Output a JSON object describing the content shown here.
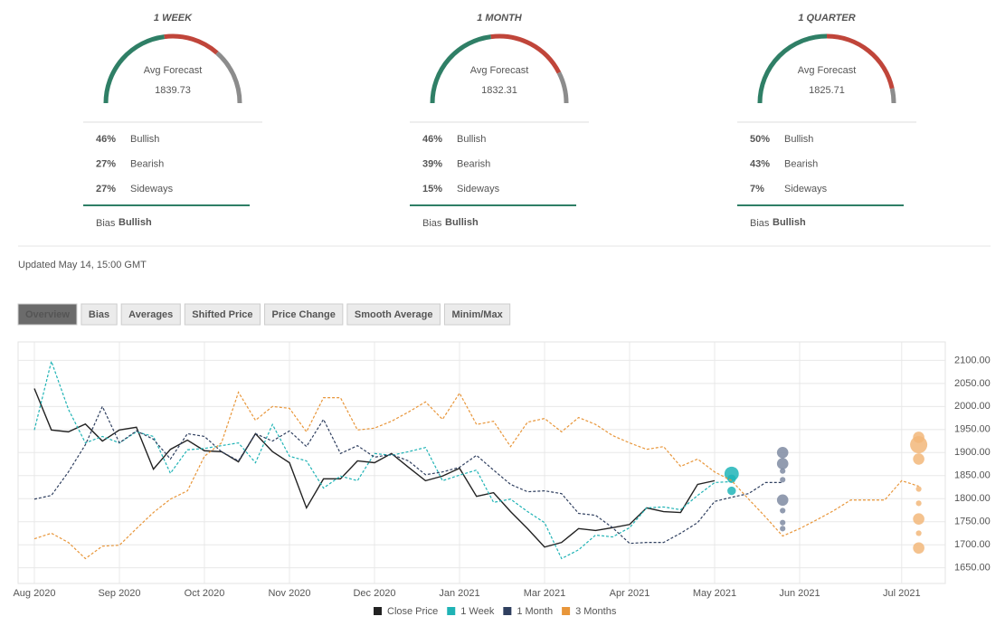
{
  "gauges": [
    {
      "period": "1 WEEK",
      "caption": "Avg Forecast",
      "average": 1839.73,
      "rows": [
        {
          "pct": {
            "value": 46,
            "label": "46%"
          },
          "name": "Bullish",
          "color": "#2f7f66"
        },
        {
          "pct": {
            "value": 27,
            "label": "27%"
          },
          "name": "Bearish",
          "color": "#c0453a"
        },
        {
          "pct": {
            "value": 27,
            "label": "27%"
          },
          "name": "Sideways",
          "color": "#8c8c8c"
        }
      ],
      "bias_label": "Bias",
      "bias": "Bullish"
    },
    {
      "period": "1 MONTH",
      "caption": "Avg Forecast",
      "average": 1832.31,
      "rows": [
        {
          "pct": {
            "value": 46,
            "label": "46%"
          },
          "name": "Bullish",
          "color": "#2f7f66"
        },
        {
          "pct": {
            "value": 39,
            "label": "39%"
          },
          "name": "Bearish",
          "color": "#c0453a"
        },
        {
          "pct": {
            "value": 15,
            "label": "15%"
          },
          "name": "Sideways",
          "color": "#8c8c8c"
        }
      ],
      "bias_label": "Bias",
      "bias": "Bullish"
    },
    {
      "period": "1 QUARTER",
      "caption": "Avg Forecast",
      "average": 1825.71,
      "rows": [
        {
          "pct": {
            "value": 50,
            "label": "50%"
          },
          "name": "Bullish",
          "color": "#2f7f66"
        },
        {
          "pct": {
            "value": 43,
            "label": "43%"
          },
          "name": "Bearish",
          "color": "#c0453a"
        },
        {
          "pct": {
            "value": 7,
            "label": "7%"
          },
          "name": "Sideways",
          "color": "#8c8c8c"
        }
      ],
      "bias_label": "Bias",
      "bias": "Bullish"
    }
  ],
  "updated": "Updated May 14, 15:00 GMT",
  "tabs": [
    "Overview",
    "Bias",
    "Averages",
    "Shifted Price",
    "Price Change",
    "Smooth Average",
    "Minim/Max"
  ],
  "chart_data": {
    "type": "line",
    "categories": [
      "Aug 2020",
      null,
      null,
      null,
      null,
      "Sep 2020",
      null,
      null,
      null,
      null,
      "Oct 2020",
      null,
      null,
      null,
      null,
      "Nov 2020",
      null,
      null,
      null,
      null,
      "Dec 2020",
      null,
      null,
      null,
      null,
      "Jan 2021",
      null,
      null,
      null,
      null,
      "Mar 2021",
      null,
      null,
      null,
      null,
      "Apr 2021",
      null,
      null,
      null,
      null,
      "May 2021",
      null,
      null,
      null,
      null,
      "Jun 2021",
      null,
      null,
      null,
      null,
      null,
      "Jul 2021",
      null,
      null
    ],
    "ylim": [
      1616,
      2140
    ],
    "yticks": [
      {
        "value": 1650,
        "label": "1650.00"
      },
      {
        "value": 1700,
        "label": "1700.00"
      },
      {
        "value": 1750,
        "label": "1750.00"
      },
      {
        "value": 1800,
        "label": "1800.00"
      },
      {
        "value": 1850,
        "label": "1850.00"
      },
      {
        "value": 1900,
        "label": "1900.00"
      },
      {
        "value": 1950,
        "label": "1950.00"
      },
      {
        "value": 2000,
        "label": "2000.00"
      },
      {
        "value": 2050,
        "label": "2050.00"
      },
      {
        "value": 2100,
        "label": "2100.00"
      }
    ],
    "grid": true,
    "series": [
      {
        "name": "Close Price",
        "color": "#222222",
        "dashed": false,
        "values": [
          2039,
          1949,
          1945,
          1962,
          1925,
          1949,
          1955,
          1864,
          1907,
          1927,
          1904,
          1902,
          1880,
          1941,
          1902,
          1878,
          1780,
          1843,
          1843,
          1882,
          1878,
          1898,
          1868,
          1839,
          1849,
          1866,
          1805,
          1813,
          1772,
          1735,
          1695,
          1705,
          1735,
          1731,
          1737,
          1744,
          1780,
          1772,
          1770,
          1831,
          1839,
          null,
          null,
          null,
          null,
          null,
          null,
          null,
          null,
          null,
          null,
          null,
          null,
          null
        ]
      },
      {
        "name": "1 Week",
        "color": "#1fb3b5",
        "dashed": true,
        "values": [
          1949,
          2098,
          1994,
          1921,
          1935,
          1921,
          1945,
          1935,
          1855,
          1906,
          1909,
          1915,
          1921,
          1878,
          1961,
          1892,
          1882,
          1823,
          1849,
          1839,
          1898,
          1894,
          1902,
          1911,
          1839,
          1851,
          1862,
          1792,
          1799,
          1772,
          1748,
          1670,
          1689,
          1721,
          1717,
          1737,
          1780,
          1782,
          1776,
          1807,
          1835,
          1837,
          null,
          null,
          null,
          null,
          null,
          null,
          null,
          null,
          null,
          null,
          null,
          null
        ],
        "forecast": {
          "x": 41,
          "color": "#20b5b8",
          "values": [
            1854,
            1843,
            1817
          ],
          "sizes": [
            4,
            2,
            2
          ]
        }
      },
      {
        "name": "1 Month",
        "color": "#2f3f5f",
        "dashed": true,
        "values": [
          1799,
          1807,
          1858,
          1917,
          2000,
          1921,
          1947,
          1929,
          1886,
          1941,
          1935,
          1902,
          1882,
          1941,
          1925,
          1947,
          1913,
          1972,
          1898,
          1915,
          1890,
          1896,
          1882,
          1852,
          1858,
          1868,
          1894,
          1862,
          1831,
          1815,
          1817,
          1811,
          1768,
          1764,
          1737,
          1703,
          1705,
          1705,
          1725,
          1748,
          1794,
          1803,
          1811,
          1835,
          1835,
          null,
          null,
          null,
          null,
          null,
          null,
          null,
          null,
          null
        ],
        "forecast": {
          "x": 44,
          "color": "#7f8ba2",
          "values": [
            1900,
            1876,
            1860,
            1841,
            1797,
            1774,
            1748,
            1735
          ],
          "sizes": [
            3,
            3,
            1,
            1,
            3,
            1,
            1,
            1
          ]
        }
      },
      {
        "name": "3 Months",
        "color": "#e8963a",
        "dashed": true,
        "values": [
          1713,
          1725,
          1705,
          1670,
          1697,
          1699,
          1735,
          1770,
          1799,
          1817,
          1892,
          1921,
          2031,
          1970,
          2000,
          1996,
          1945,
          2019,
          2019,
          1949,
          1953,
          1968,
          1988,
          2010,
          1972,
          2029,
          1961,
          1968,
          1913,
          1966,
          1974,
          1945,
          1976,
          1961,
          1937,
          1921,
          1907,
          1913,
          1870,
          1886,
          1858,
          1839,
          1799,
          1760,
          1719,
          1735,
          1754,
          1774,
          1797,
          1797,
          1797,
          1839,
          1827,
          null
        ],
        "forecast": {
          "x": 52,
          "color": "#f2b77a",
          "values": [
            1933,
            1917,
            1886,
            1821,
            1790,
            1756,
            1725,
            1693
          ],
          "sizes": [
            3,
            5,
            3,
            1,
            1,
            3,
            1,
            3
          ]
        }
      }
    ]
  }
}
